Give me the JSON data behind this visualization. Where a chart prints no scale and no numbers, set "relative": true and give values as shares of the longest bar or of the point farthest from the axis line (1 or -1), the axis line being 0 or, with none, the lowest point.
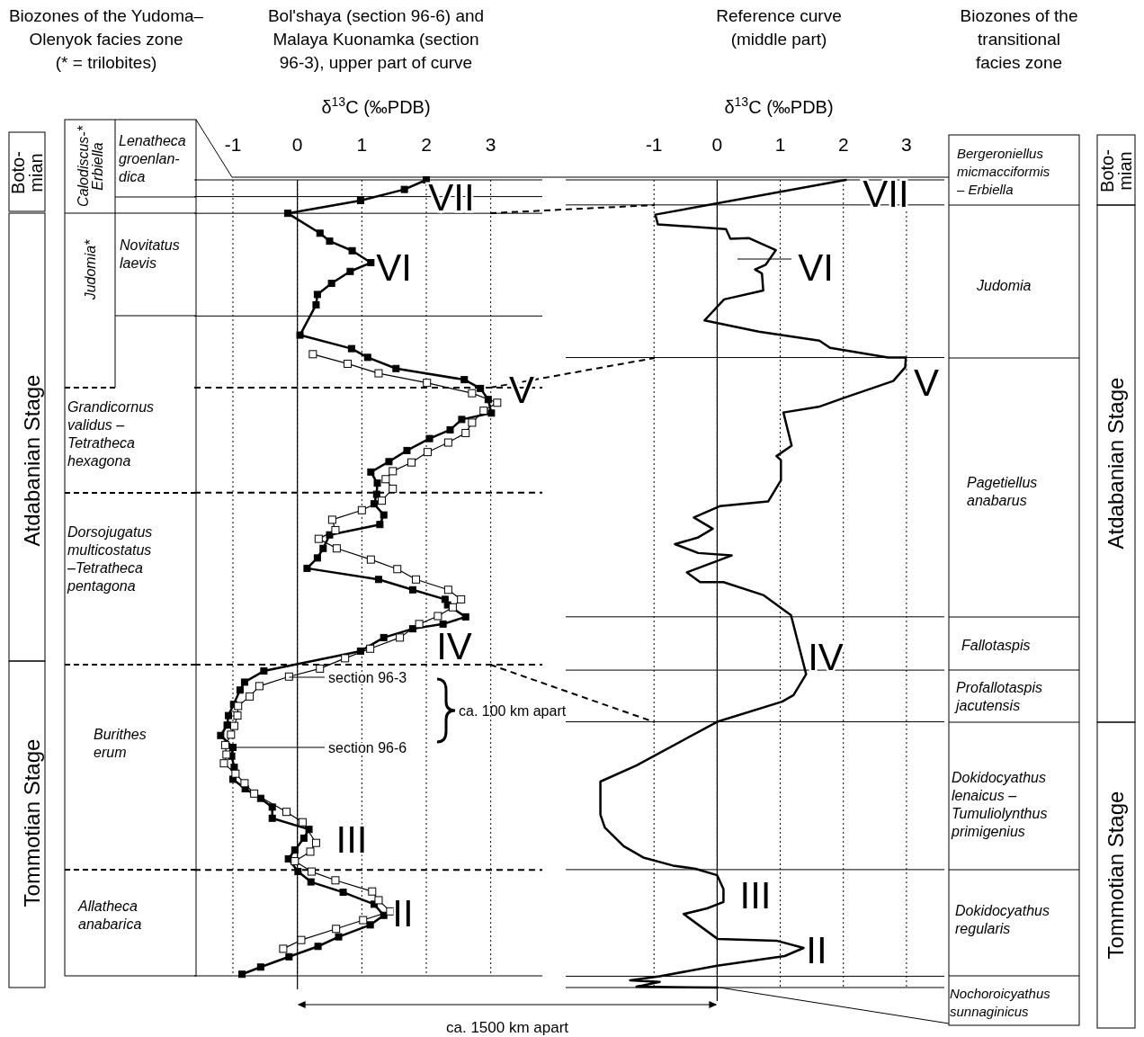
{
  "chart_data": [
    {
      "type": "other",
      "title": "Biozones of the Yudoma–\nOlenyok facies zone\n(* = trilobites)",
      "annotations": [
        "Boto-\nmian",
        "Atdabanian Stage",
        "Tommotian Stage",
        "Calodiscus-*\nErbiella",
        "Judomia*",
        "Lenatheca\ngroenlan-\ndica",
        "Novitatus\nlaevis",
        "Grandicornus\nvalidus –\nTetratheca\nhexagona",
        "Dorsojugatus\nmulticostatus\n–Tetratheca\npentagona",
        "Burithes\nerum",
        "Allatheca\nanabarica"
      ]
    },
    {
      "type": "line",
      "title": "Bol'shaya (section 96-6) and\nMalaya Kuonamka (section\n96-3), upper part of curve",
      "xlabel": "δ$^{13}$C (‰PDB)",
      "xlim": [
        -1.6,
        3.8
      ],
      "xticks": [
        -1,
        0,
        1,
        2,
        3
      ],
      "grid": "x",
      "relative": true,
      "marker": "square",
      "line_style": "solid",
      "series": [
        {
          "name": "section 96-6",
          "color": "#000000",
          "x": [
            2.0,
            1.66,
            0.98,
            -0.15,
            0.35,
            0.5,
            0.85,
            1.14,
            0.82,
            0.53,
            0.31,
            0.29,
            0.04,
            0.84,
            1.09,
            1.53,
            2.59,
            2.84,
            2.96,
            3.01,
            2.55,
            2.37,
            2.05,
            1.7,
            1.42,
            1.14,
            1.24,
            1.23,
            1.19,
            1.34,
            1.28,
            0.5,
            0.4,
            0.31,
            0.15,
            1.26,
            1.79,
            2.29,
            2.33,
            2.61,
            2.26,
            1.79,
            1.34,
            0.98,
            -0.52,
            -0.82,
            -0.89,
            -0.99,
            -1.07,
            -1.09,
            -1.19,
            -1.0,
            -1.02,
            -0.98,
            -1.0,
            -0.81,
            -0.57,
            -0.39,
            -0.39,
            0.18,
            0.1,
            -0.04,
            -0.14,
            0.01,
            0.21,
            0.71,
            1.19,
            1.34,
            1.13,
            0.64,
            0.32,
            -0.13,
            -0.57,
            -0.86
          ],
          "values": [
            1.0,
            0.988,
            0.974,
            0.958,
            0.933,
            0.923,
            0.911,
            0.896,
            0.885,
            0.87,
            0.856,
            0.843,
            0.805,
            0.788,
            0.777,
            0.763,
            0.749,
            0.738,
            0.724,
            0.707,
            0.699,
            0.686,
            0.675,
            0.66,
            0.646,
            0.633,
            0.619,
            0.605,
            0.593,
            0.579,
            0.567,
            0.554,
            0.537,
            0.525,
            0.512,
            0.498,
            0.485,
            0.473,
            0.466,
            0.451,
            0.442,
            0.436,
            0.425,
            0.408,
            0.383,
            0.369,
            0.359,
            0.341,
            0.327,
            0.315,
            0.302,
            0.287,
            0.276,
            0.262,
            0.247,
            0.235,
            0.223,
            0.212,
            0.198,
            0.184,
            0.173,
            0.158,
            0.147,
            0.131,
            0.118,
            0.105,
            0.09,
            0.076,
            0.064,
            0.049,
            0.037,
            0.024,
            0.011,
            0.002
          ]
        },
        {
          "name": "section 96-3",
          "color": "#000000",
          "x": [
            0.24,
            0.78,
            1.26,
            2.01,
            2.71,
            3.1,
            2.89,
            2.71,
            2.61,
            2.34,
            2.02,
            1.77,
            1.48,
            1.37,
            1.48,
            1.31,
            1.0,
            0.54,
            0.59,
            0.33,
            0.61,
            1.14,
            1.55,
            1.84,
            2.34,
            2.54,
            2.41,
            2.18,
            1.89,
            1.59,
            1.13,
            0.74,
            0.35,
            -0.13,
            -0.59,
            -0.74,
            -0.92,
            -0.93,
            -0.98,
            -1.03,
            -1.12,
            -1.1,
            -1.14,
            -0.96,
            -0.82,
            -0.67,
            -0.17,
            0.08,
            0.29,
            0.2,
            -0.04,
            0.22,
            0.59,
            1.16,
            1.26,
            1.44,
            1.02,
            0.6,
            0.06,
            -0.22
          ],
          "values": [
            0.781,
            0.769,
            0.757,
            0.745,
            0.732,
            0.72,
            0.71,
            0.695,
            0.682,
            0.67,
            0.658,
            0.645,
            0.634,
            0.624,
            0.612,
            0.597,
            0.585,
            0.573,
            0.56,
            0.549,
            0.537,
            0.523,
            0.511,
            0.498,
            0.485,
            0.473,
            0.463,
            0.452,
            0.442,
            0.425,
            0.411,
            0.399,
            0.386,
            0.376,
            0.364,
            0.351,
            0.339,
            0.327,
            0.314,
            0.303,
            0.29,
            0.278,
            0.267,
            0.254,
            0.242,
            0.229,
            0.206,
            0.193,
            0.167,
            0.156,
            0.144,
            0.131,
            0.12,
            0.106,
            0.095,
            0.081,
            0.07,
            0.059,
            0.045,
            0.034
          ]
        }
      ],
      "ref_lines": [
        {
          "axis": "x",
          "value": 0,
          "line_style": "solid"
        },
        {
          "axis": "y",
          "value": 0.979,
          "line_style": "solid"
        },
        {
          "axis": "y",
          "value": 0.958,
          "line_style": "solid"
        },
        {
          "axis": "y",
          "value": 0.829,
          "line_style": "solid"
        },
        {
          "axis": "y",
          "value": 0.739,
          "line_style": "dashed"
        },
        {
          "axis": "y",
          "value": 0.607,
          "line_style": "dashed"
        },
        {
          "axis": "y",
          "value": 0.391,
          "line_style": "dashed"
        },
        {
          "axis": "y",
          "value": 0.133,
          "line_style": "dashed"
        }
      ],
      "annotations": [
        "VII",
        "VI",
        "V",
        "IV",
        "III",
        "II",
        "ca. 100 km apart",
        "ca. 1500 km apart"
      ]
    },
    {
      "type": "line",
      "title": "Reference curve\n(middle part)",
      "xlabel": "δ$^{13}$C (‰PDB)",
      "xlim": [
        -2.4,
        3.6
      ],
      "xticks": [
        -1,
        0,
        1,
        2,
        3
      ],
      "grid": "x",
      "relative": true,
      "marker": "none",
      "line_style": "solid",
      "series": [
        {
          "color": "#000000",
          "x": [
            2.04,
            -0.98,
            -0.94,
            0.14,
            0.21,
            0.5,
            0.93,
            0.77,
            0.6,
            0.71,
            0.73,
            0.11,
            -0.2,
            0.66,
            1.62,
            1.79,
            2.71,
            2.99,
            2.98,
            2.79,
            2.04,
            1.61,
            1.05,
            1.18,
            0.94,
            1.01,
            1.01,
            0.81,
            0.04,
            -0.37,
            -0.07,
            -0.31,
            -0.67,
            -0.3,
            0.23,
            -0.48,
            -0.27,
            0.1,
            0.73,
            1.17,
            1.41,
            1.21,
            1.03,
            0.0,
            -1.28,
            -1.85,
            -1.85,
            -1.78,
            -1.48,
            -1.17,
            -0.7,
            -0.34,
            0.0,
            0.1,
            0.1,
            -0.16,
            -0.53,
            0.01,
            0.94,
            1.37,
            1.07,
            0.0,
            -0.91,
            -1.38,
            -0.91,
            -1.28,
            0.01
          ],
          "values": [
            1.0,
            0.957,
            0.945,
            0.939,
            0.927,
            0.928,
            0.913,
            0.895,
            0.889,
            0.884,
            0.863,
            0.852,
            0.826,
            0.812,
            0.801,
            0.792,
            0.78,
            0.78,
            0.768,
            0.751,
            0.731,
            0.719,
            0.712,
            0.671,
            0.658,
            0.653,
            0.628,
            0.602,
            0.596,
            0.582,
            0.568,
            0.557,
            0.549,
            0.538,
            0.535,
            0.514,
            0.502,
            0.502,
            0.486,
            0.461,
            0.388,
            0.362,
            0.354,
            0.329,
            0.275,
            0.255,
            0.214,
            0.198,
            0.175,
            0.161,
            0.151,
            0.147,
            0.139,
            0.122,
            0.106,
            0.098,
            0.091,
            0.06,
            0.058,
            0.049,
            0.039,
            0.027,
            0.014,
            0.009,
            0.007,
            0.001,
            0.0
          ]
        }
      ],
      "ref_lines": [
        {
          "axis": "x",
          "value": 0,
          "line_style": "solid"
        },
        {
          "axis": "y",
          "value": 0.969,
          "line_style": "solid"
        },
        {
          "axis": "y",
          "value": 0.78,
          "line_style": "solid"
        },
        {
          "axis": "y",
          "value": 0.459,
          "line_style": "solid"
        },
        {
          "axis": "y",
          "value": 0.393,
          "line_style": "solid"
        },
        {
          "axis": "y",
          "value": 0.329,
          "line_style": "solid"
        },
        {
          "axis": "y",
          "value": 0.146,
          "line_style": "solid"
        },
        {
          "axis": "y",
          "value": 0.014,
          "line_style": "solid"
        }
      ],
      "annotations": [
        "VII",
        "VI",
        "V",
        "IV",
        "III",
        "II"
      ]
    },
    {
      "type": "other",
      "title": "Biozones of the\ntransitional\nfacies zone",
      "annotations": [
        "Boto-\nmian",
        "Atdabanian Stage",
        "Tommotian Stage",
        "Bergeroniellus\nmicmacciformis\n– Erbiella",
        "Judomia",
        "Pagetiellus\nanabarus",
        "Fallotaspis",
        "Profallotaspis\njacutensis",
        "Dokidocyathus\nlenaicus –\nTumuliolynthus\nprimigenius",
        "Dokidocyathus\nregularis",
        "Nochoroicyathus\nsunnaginicus"
      ]
    }
  ]
}
